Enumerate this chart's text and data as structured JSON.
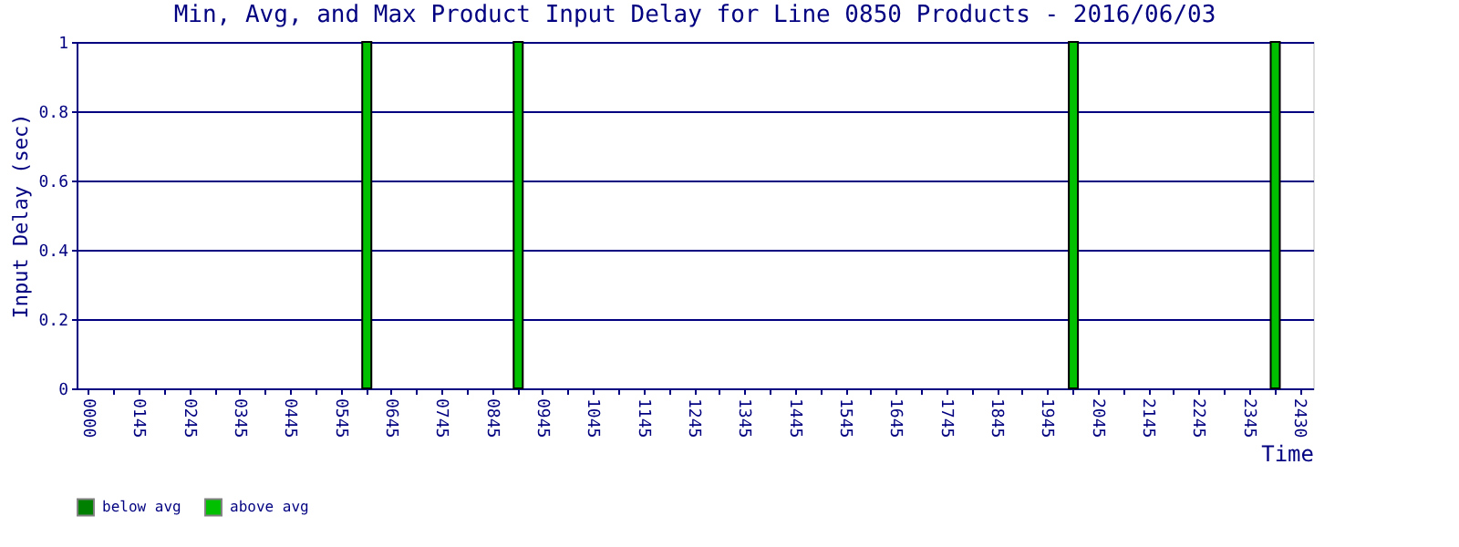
{
  "chart_data": {
    "type": "bar",
    "title": "Min, Avg, and Max Product Input Delay for Line 0850 Products - 2016/06/03",
    "xlabel": "Time",
    "ylabel": "Input Delay (sec)",
    "categories": [
      "0000",
      null,
      "0145",
      null,
      "0245",
      null,
      "0345",
      null,
      "0445",
      null,
      "0545",
      null,
      "0645",
      null,
      "0745",
      null,
      "0845",
      null,
      "0945",
      null,
      "1045",
      null,
      "1145",
      null,
      "1245",
      null,
      "1345",
      null,
      "1445",
      null,
      "1545",
      null,
      "1645",
      null,
      "1745",
      null,
      "1845",
      null,
      "1945",
      null,
      "2045",
      null,
      "2145",
      null,
      "2245",
      null,
      "2345",
      null,
      "2430"
    ],
    "series": [
      {
        "name": "below avg",
        "color": "#008000",
        "values": [
          null,
          null,
          null,
          null,
          null,
          null,
          null,
          null,
          null,
          null,
          null,
          null,
          null,
          null,
          null,
          null,
          null,
          null,
          null,
          null,
          null,
          null,
          null,
          null,
          null,
          null,
          null,
          null,
          null,
          null,
          null,
          null,
          null,
          null,
          null,
          null,
          null,
          null,
          null,
          null,
          null,
          null,
          null,
          null,
          null,
          null,
          null,
          null,
          null
        ]
      },
      {
        "name": "above avg",
        "color": "#00c000",
        "values": [
          null,
          null,
          null,
          null,
          null,
          null,
          null,
          null,
          null,
          null,
          null,
          1,
          null,
          null,
          null,
          null,
          null,
          1,
          null,
          null,
          null,
          null,
          null,
          null,
          null,
          null,
          null,
          null,
          null,
          null,
          null,
          null,
          null,
          null,
          null,
          null,
          null,
          null,
          null,
          1,
          null,
          null,
          null,
          null,
          null,
          null,
          null,
          1,
          null
        ]
      }
    ],
    "ylim": [
      0,
      1
    ],
    "yticks": [
      0,
      0.2,
      0.4,
      0.6,
      0.8,
      1
    ],
    "grid": "y",
    "legend": "bottom"
  }
}
